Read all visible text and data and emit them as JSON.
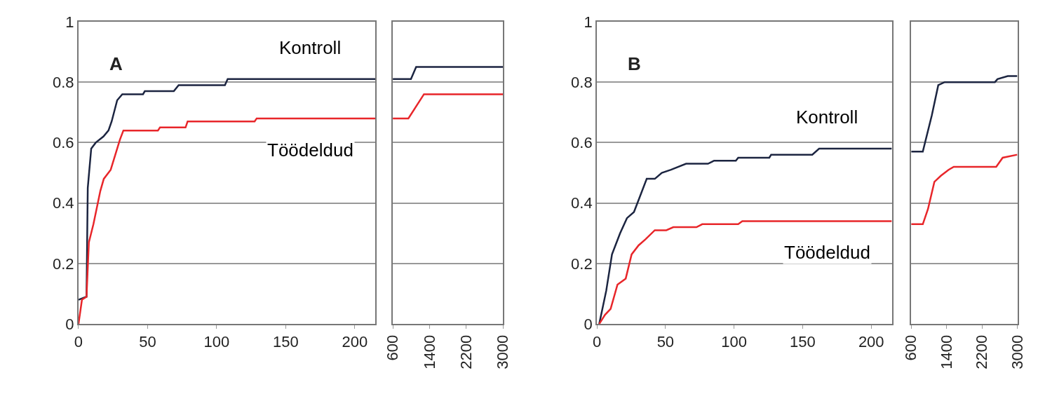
{
  "chart_data": [
    {
      "type": "line",
      "annotations": [
        "A"
      ],
      "xlim": [
        0,
        215
      ],
      "xticks": [
        0,
        50,
        100,
        150,
        200
      ],
      "ylim": [
        0,
        1
      ],
      "yticks": [
        0,
        0.2,
        0.4,
        0.6,
        0.8,
        1
      ],
      "grid": "y",
      "legend": false,
      "marker": "none",
      "line_style": "solid",
      "series": [
        {
          "name": "Kontroll",
          "color": "#1c2541",
          "x": [
            0,
            5.8,
            6.7,
            9.2,
            12.5,
            18,
            21.7,
            24,
            28,
            31.7,
            46.7,
            48,
            69,
            72.5,
            106,
            108,
            215
          ],
          "values": [
            0.08,
            0.09,
            0.45,
            0.58,
            0.6,
            0.62,
            0.64,
            0.67,
            0.74,
            0.76,
            0.76,
            0.77,
            0.77,
            0.79,
            0.79,
            0.81,
            0.81
          ]
        },
        {
          "name": "Töödeldud",
          "color": "#e8262a",
          "x": [
            0,
            2.5,
            5.8,
            7.5,
            10.8,
            15.8,
            18.3,
            23.3,
            30,
            32.5,
            57.5,
            59,
            77.5,
            79,
            127.5,
            129,
            215
          ],
          "values": [
            0,
            0.08,
            0.09,
            0.27,
            0.33,
            0.44,
            0.48,
            0.51,
            0.61,
            0.64,
            0.64,
            0.65,
            0.65,
            0.67,
            0.67,
            0.68,
            0.68
          ]
        }
      ]
    },
    {
      "type": "line",
      "xlim": [
        600,
        3000
      ],
      "xticks": [
        600,
        1400,
        2200,
        3000
      ],
      "ylim": [
        0,
        1
      ],
      "yticks": [
        0,
        0.2,
        0.4,
        0.6,
        0.8,
        1
      ],
      "tick_labels": "x",
      "grid": "y",
      "legend": false,
      "marker": "none",
      "line_style": "solid",
      "series": [
        {
          "color": "#1c2541",
          "x": [
            600,
            995,
            1108,
            3000
          ],
          "values": [
            0.81,
            0.81,
            0.85,
            0.85
          ]
        },
        {
          "color": "#e8262a",
          "x": [
            600,
            939,
            1278,
            3000
          ],
          "values": [
            0.68,
            0.68,
            0.76,
            0.76
          ]
        }
      ]
    },
    {
      "type": "line",
      "annotations": [
        "B"
      ],
      "xlim": [
        0,
        215
      ],
      "xticks": [
        0,
        50,
        100,
        150,
        200
      ],
      "ylim": [
        0,
        1
      ],
      "yticks": [
        0,
        0.2,
        0.4,
        0.6,
        0.8,
        1
      ],
      "grid": "y",
      "legend": false,
      "marker": "none",
      "line_style": "solid",
      "series": [
        {
          "name": "Kontroll",
          "color": "#1c2541",
          "x": [
            1.7,
            6.8,
            11,
            16.9,
            21.9,
            27,
            30.4,
            36.3,
            42.2,
            47.3,
            54,
            65,
            81,
            85.4,
            101.3,
            103,
            125.7,
            127,
            157,
            162,
            215
          ],
          "values": [
            0,
            0.11,
            0.23,
            0.3,
            0.35,
            0.37,
            0.41,
            0.48,
            0.48,
            0.5,
            0.51,
            0.53,
            0.53,
            0.54,
            0.54,
            0.55,
            0.55,
            0.56,
            0.56,
            0.58,
            0.58
          ]
        },
        {
          "name": "Töödeldud",
          "color": "#e8262a",
          "x": [
            1.7,
            5.9,
            10,
            15,
            21,
            25.3,
            30.4,
            35.4,
            42.2,
            50.6,
            55.7,
            72.6,
            76.8,
            103,
            106,
            215
          ],
          "values": [
            0,
            0.03,
            0.05,
            0.13,
            0.15,
            0.23,
            0.26,
            0.28,
            0.31,
            0.31,
            0.32,
            0.32,
            0.33,
            0.33,
            0.34,
            0.34
          ]
        }
      ]
    },
    {
      "type": "line",
      "xlim": [
        600,
        3000
      ],
      "xticks": [
        600,
        1400,
        2200,
        3000
      ],
      "ylim": [
        0,
        1
      ],
      "yticks": [
        0,
        0.2,
        0.4,
        0.6,
        0.8,
        1
      ],
      "tick_labels": "x",
      "grid": "y",
      "legend": false,
      "marker": "none",
      "line_style": "solid",
      "series": [
        {
          "color": "#1c2541",
          "x": [
            600,
            862,
            1066,
            1212,
            1357,
            2493,
            2551,
            2784,
            2843,
            3000
          ],
          "values": [
            0.57,
            0.57,
            0.69,
            0.79,
            0.8,
            0.8,
            0.81,
            0.82,
            0.82,
            0.82
          ]
        },
        {
          "color": "#e8262a",
          "x": [
            600,
            862,
            979,
            1124,
            1270,
            1445,
            1561,
            2522,
            2668,
            3000
          ],
          "values": [
            0.33,
            0.33,
            0.38,
            0.47,
            0.49,
            0.51,
            0.52,
            0.52,
            0.55,
            0.56
          ]
        }
      ]
    }
  ]
}
